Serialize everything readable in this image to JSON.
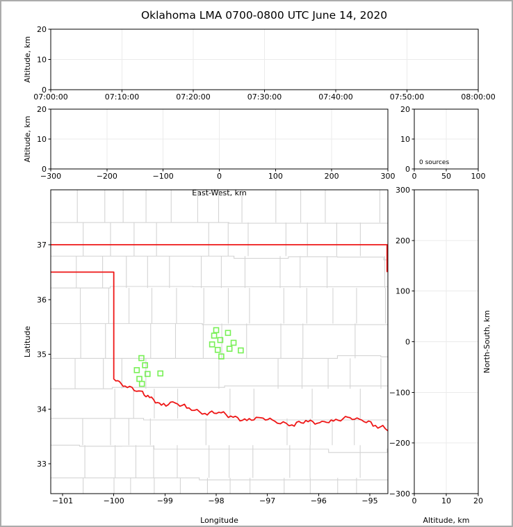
{
  "title": "Oklahoma LMA 0700-0800 UTC June 14, 2020",
  "colors": {
    "state_border": "#ee1515",
    "county_border": "#d4d4d4",
    "source_marker": "#77f055",
    "grid": "#ebebeb",
    "spine": "#000000",
    "frame": "#ababab",
    "background": "#ffffff"
  },
  "chart_data": [
    {
      "id": "alt-vs-time",
      "type": "scatter",
      "xlabel": "",
      "ylabel": "Altitude, km",
      "xlim": [
        0,
        6
      ],
      "xticks": [
        0,
        1,
        2,
        3,
        4,
        5,
        6
      ],
      "xtick_labels": [
        "07:00:00",
        "07:10:00",
        "07:20:00",
        "07:30:00",
        "07:40:00",
        "07:50:00",
        "08:00:00"
      ],
      "ylim": [
        0,
        20
      ],
      "yticks": [
        0,
        10,
        20
      ],
      "ytick_labels": [
        "0",
        "10",
        "20"
      ],
      "grid": true,
      "series": []
    },
    {
      "id": "alt-vs-east-west",
      "type": "scatter",
      "xlabel": "East-West, km",
      "ylabel": "Altitude, km",
      "xlim": [
        -300,
        300
      ],
      "xticks": [
        -300,
        -200,
        -100,
        0,
        100,
        200,
        300
      ],
      "xtick_labels": [
        "−300",
        "−200",
        "−100",
        "0",
        "100",
        "200",
        "300"
      ],
      "ylim": [
        0,
        20
      ],
      "yticks": [
        0,
        10,
        20
      ],
      "ytick_labels": [
        "0",
        "10",
        "20"
      ],
      "grid": true,
      "series": []
    },
    {
      "id": "alt-histogram",
      "type": "line",
      "xlabel": "",
      "ylabel": "",
      "annotation": "0 sources",
      "xlim": [
        0,
        100
      ],
      "xticks": [
        0,
        50,
        100
      ],
      "xtick_labels": [
        "0",
        "50",
        "100"
      ],
      "ylim": [
        0,
        20
      ],
      "yticks": [
        0,
        10,
        20
      ],
      "ytick_labels": [
        "0",
        "10",
        "20"
      ],
      "grid": true,
      "series": []
    },
    {
      "id": "plan-view",
      "type": "scatter",
      "xlabel": "Longitude",
      "ylabel": "Latitude",
      "xlim": [
        -101.231,
        -94.647
      ],
      "xticks": [
        -101,
        -100,
        -99,
        -98,
        -97,
        -96,
        -95
      ],
      "xtick_labels": [
        "−101",
        "−100",
        "−99",
        "−98",
        "−97",
        "−96",
        "−95"
      ],
      "ylim": [
        32.455,
        38.003
      ],
      "yticks": [
        33,
        34,
        35,
        36,
        37
      ],
      "ytick_labels": [
        "33",
        "34",
        "35",
        "36",
        "37"
      ],
      "grid": false,
      "marker": "open-square",
      "map": {
        "region": "Oklahoma",
        "county_borders": true,
        "state_border": true
      },
      "points": [
        {
          "lon": -98.0,
          "lat": 35.44
        },
        {
          "lon": -97.77,
          "lat": 35.39
        },
        {
          "lon": -98.04,
          "lat": 35.34
        },
        {
          "lon": -97.92,
          "lat": 35.26
        },
        {
          "lon": -98.08,
          "lat": 35.18
        },
        {
          "lon": -97.66,
          "lat": 35.21
        },
        {
          "lon": -97.97,
          "lat": 35.08
        },
        {
          "lon": -97.74,
          "lat": 35.1
        },
        {
          "lon": -97.52,
          "lat": 35.07
        },
        {
          "lon": -97.9,
          "lat": 34.96
        },
        {
          "lon": -99.46,
          "lat": 34.93
        },
        {
          "lon": -99.39,
          "lat": 34.8
        },
        {
          "lon": -99.55,
          "lat": 34.71
        },
        {
          "lon": -99.34,
          "lat": 34.64
        },
        {
          "lon": -99.09,
          "lat": 34.65
        },
        {
          "lon": -99.5,
          "lat": 34.55
        },
        {
          "lon": -99.45,
          "lat": 34.46
        }
      ]
    },
    {
      "id": "ns-vs-alt",
      "type": "scatter",
      "xlabel": "Altitude, km",
      "ylabel": "North-South, km",
      "ylabel_side": "right",
      "xlim": [
        0,
        20
      ],
      "xticks": [
        0,
        10,
        20
      ],
      "xtick_labels": [
        "0",
        "10",
        "20"
      ],
      "ylim": [
        -300,
        300
      ],
      "yticks": [
        -300,
        -200,
        -100,
        0,
        100,
        200,
        300
      ],
      "ytick_labels": [
        "−300",
        "−200",
        "−100",
        "0",
        "100",
        "200",
        "300"
      ],
      "grid": true,
      "series": []
    }
  ]
}
